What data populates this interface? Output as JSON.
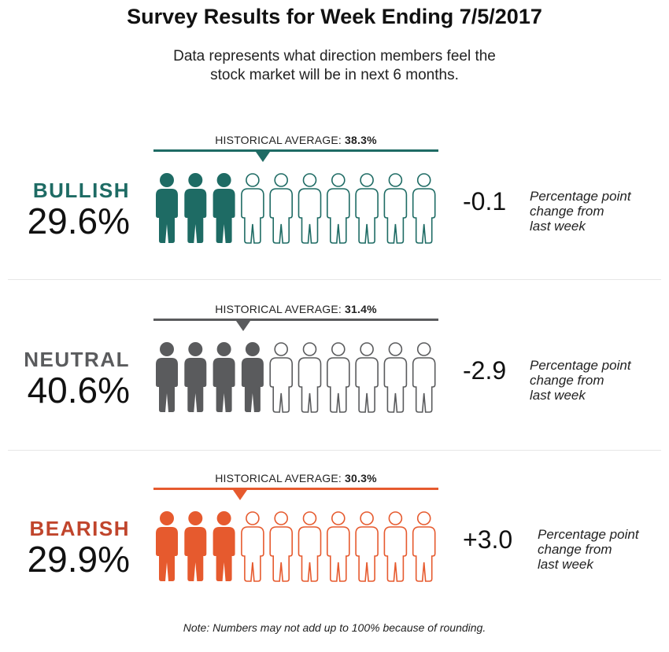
{
  "title": "Survey Results for Week Ending 7/5/2017",
  "subtitle_line1": "Data represents what direction members feel the",
  "subtitle_line2": "stock market will be in next 6 months.",
  "hist_prefix": "HISTORICAL AVERAGE:",
  "change_note_line1": "Percentage point",
  "change_note_line2": "change from",
  "change_note_line3": "last week",
  "note": "Note: Numbers may not add up to 100% because of rounding.",
  "chart_data": {
    "type": "pictograph",
    "title": "Survey Results for Week Ending 7/5/2017",
    "icons_total": 10,
    "series": [
      {
        "name": "BULLISH",
        "value_label": "29.6%",
        "value": 29.6,
        "filled_icons": 3,
        "historical_average_label": "38.3%",
        "historical_average": 38.3,
        "change_label": "-0.1",
        "change": -0.1,
        "color": "#1e6b64"
      },
      {
        "name": "NEUTRAL",
        "value_label": "40.6%",
        "value": 40.6,
        "filled_icons": 4,
        "historical_average_label": "31.4%",
        "historical_average": 31.4,
        "change_label": "-2.9",
        "change": -2.9,
        "color": "#5a5b5d"
      },
      {
        "name": "BEARISH",
        "value_label": "29.9%",
        "value": 29.9,
        "filled_icons": 3,
        "historical_average_label": "30.3%",
        "historical_average": 30.3,
        "change_label": "+3.0",
        "change": 3.0,
        "color": "#e65a2e",
        "label_color": "#c0452c"
      }
    ]
  }
}
